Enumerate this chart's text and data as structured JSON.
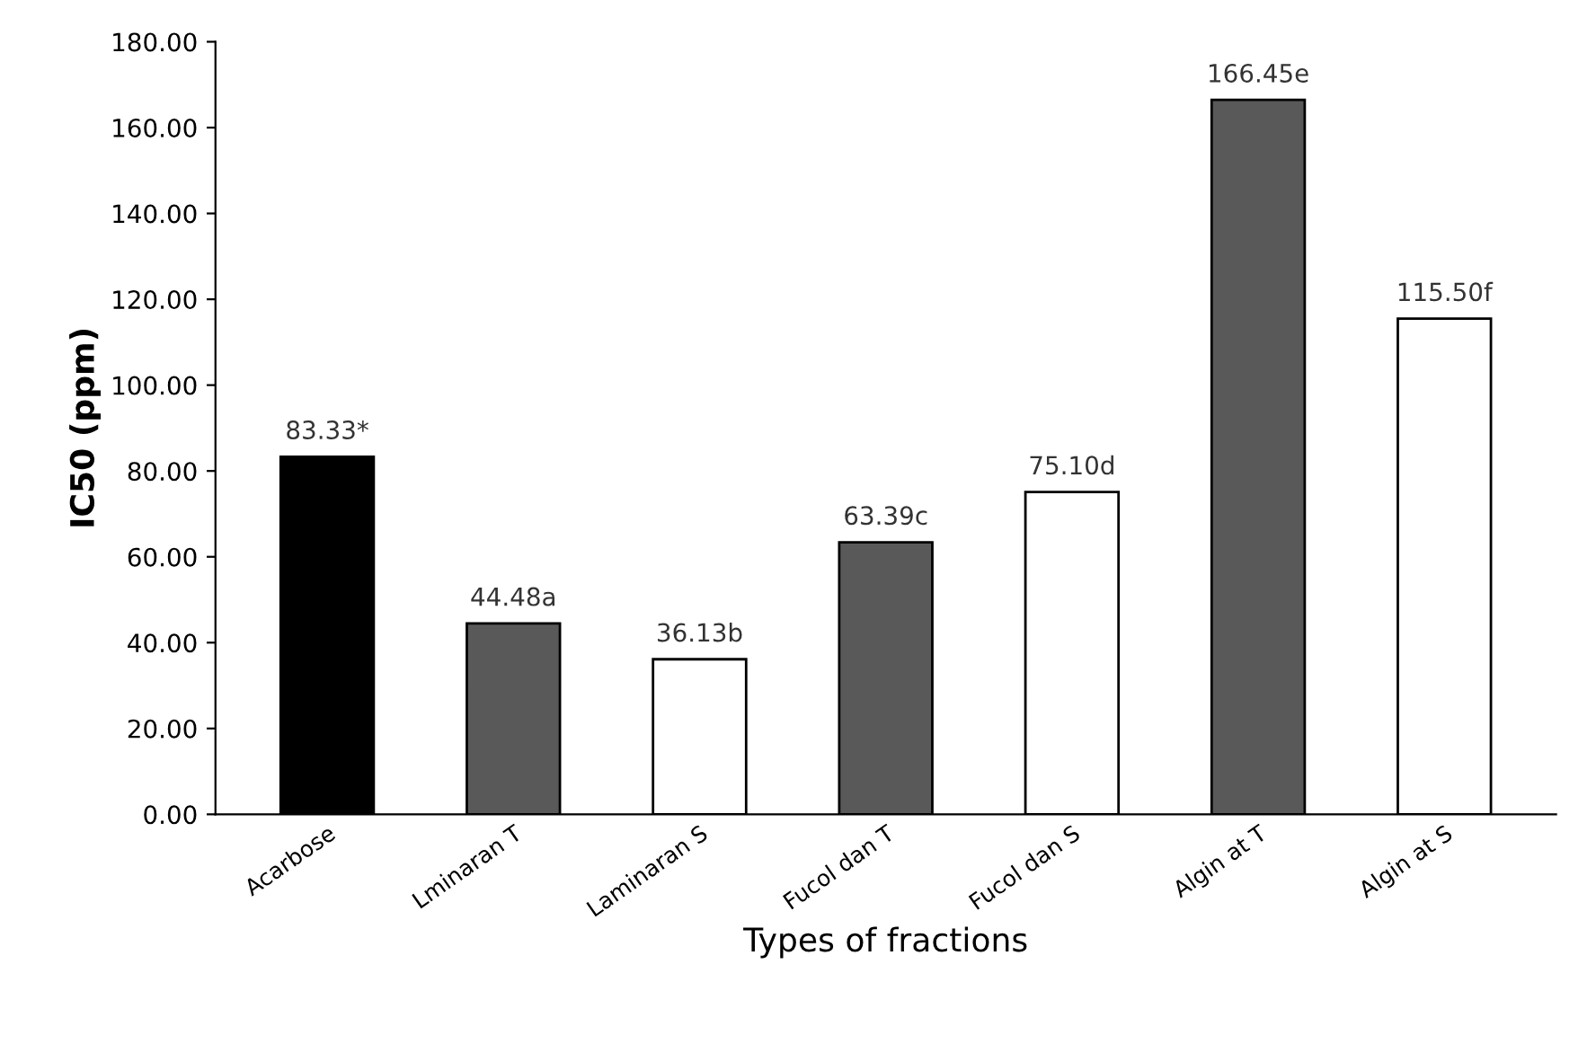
{
  "chart_data": {
    "type": "bar",
    "xlabel": "Types of fractions",
    "ylabel": "IC50 (ppm)",
    "categories": [
      "Acarbose",
      "Lminaran T",
      "Laminaran S",
      "Fucol dan T",
      "Fucol dan S",
      "Algin at T",
      "Algin at S"
    ],
    "values": [
      83.33,
      44.48,
      36.13,
      63.39,
      75.1,
      166.45,
      115.5
    ],
    "colors": [
      "#000000",
      "#595959",
      "#ffffff",
      "#595959",
      "#ffffff",
      "#595959",
      "#ffffff"
    ],
    "value_labels": [
      "83.33*",
      "44.48a",
      "36.13b",
      "63.39c",
      "75.10d",
      "166.45e",
      "115.50f"
    ],
    "ylim": [
      0,
      180
    ],
    "yticks": [
      {
        "value": 0,
        "label": "0.00"
      },
      {
        "value": 20,
        "label": "20.00"
      },
      {
        "value": 40,
        "label": "40.00"
      },
      {
        "value": 60,
        "label": "60.00"
      },
      {
        "value": 80,
        "label": "80.00"
      },
      {
        "value": 100,
        "label": "100.00"
      },
      {
        "value": 120,
        "label": "120.00"
      },
      {
        "value": 140,
        "label": "140.00"
      },
      {
        "value": 160,
        "label": "160.00"
      },
      {
        "value": 180,
        "label": "180.00"
      }
    ],
    "grid": false,
    "legend": false
  }
}
